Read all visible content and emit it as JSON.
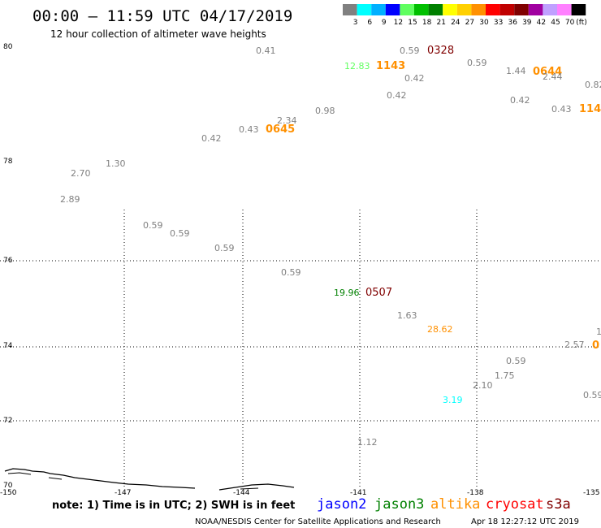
{
  "header": {
    "title": "00:00 – 11:59 UTC 04/17/2019",
    "subtitle": "12 hour collection of altimeter wave heights"
  },
  "legend": {
    "unit": "(ft)",
    "bins": [
      {
        "label": "3",
        "color": "#808080"
      },
      {
        "label": "6",
        "color": "#00ffff"
      },
      {
        "label": "9",
        "color": "#00b0ff"
      },
      {
        "label": "12",
        "color": "#0000ff"
      },
      {
        "label": "15",
        "color": "#60ff60"
      },
      {
        "label": "18",
        "color": "#00c000"
      },
      {
        "label": "21",
        "color": "#008000"
      },
      {
        "label": "24",
        "color": "#ffff00"
      },
      {
        "label": "27",
        "color": "#ffd000"
      },
      {
        "label": "30",
        "color": "#ff9000"
      },
      {
        "label": "33",
        "color": "#ff0000"
      },
      {
        "label": "36",
        "color": "#c00000"
      },
      {
        "label": "39",
        "color": "#800000"
      },
      {
        "label": "42",
        "color": "#a000a0"
      },
      {
        "label": "45",
        "color": "#c0a0ff"
      },
      {
        "label": "70",
        "color": "#ff80ff"
      },
      {
        "label": "",
        "color": "#000000"
      }
    ]
  },
  "axes": {
    "lat_labels": [
      "80",
      "78",
      "76",
      "74",
      "72",
      "70"
    ],
    "lon_labels": [
      "-150",
      "-147",
      "-144",
      "-141",
      "-138",
      "-135"
    ]
  },
  "observations": [
    {
      "text": "0.41",
      "color": "#808080"
    },
    {
      "text": "0.59",
      "color": "#808080"
    },
    {
      "text": "0328",
      "color": "#800000"
    },
    {
      "text": "12.83",
      "color": "#60ff60"
    },
    {
      "text": "1143",
      "color": "#ff9000"
    },
    {
      "text": "0.59",
      "color": "#808080"
    },
    {
      "text": "1.44",
      "color": "#808080"
    },
    {
      "text": "0644",
      "color": "#ff9000"
    },
    {
      "text": "0.42",
      "color": "#808080"
    },
    {
      "text": "2.44",
      "color": "#808080"
    },
    {
      "text": "0.82",
      "color": "#808080"
    },
    {
      "text": "0.42",
      "color": "#808080"
    },
    {
      "text": "0.42",
      "color": "#808080"
    },
    {
      "text": "0.43",
      "color": "#808080"
    },
    {
      "text": "114",
      "color": "#ff9000"
    },
    {
      "text": "0.98",
      "color": "#808080"
    },
    {
      "text": "2.34",
      "color": "#808080"
    },
    {
      "text": "0.43",
      "color": "#808080"
    },
    {
      "text": "0645",
      "color": "#ff9000"
    },
    {
      "text": "0.42",
      "color": "#808080"
    },
    {
      "text": "1.30",
      "color": "#808080"
    },
    {
      "text": "2.70",
      "color": "#808080"
    },
    {
      "text": "2.89",
      "color": "#808080"
    },
    {
      "text": "0.59",
      "color": "#808080"
    },
    {
      "text": "0.59",
      "color": "#808080"
    },
    {
      "text": "0.59",
      "color": "#808080"
    },
    {
      "text": "0.59",
      "color": "#808080"
    },
    {
      "text": "19.96",
      "color": "#008000"
    },
    {
      "text": "0507",
      "color": "#800000"
    },
    {
      "text": "1.63",
      "color": "#808080"
    },
    {
      "text": "28.62",
      "color": "#ff9000"
    },
    {
      "text": "2.57",
      "color": "#808080"
    },
    {
      "text": "0",
      "color": "#ff9000"
    },
    {
      "text": "1",
      "color": "#808080"
    },
    {
      "text": "0.59",
      "color": "#808080"
    },
    {
      "text": "1.75",
      "color": "#808080"
    },
    {
      "text": "2.10",
      "color": "#808080"
    },
    {
      "text": "3.19",
      "color": "#00ffff"
    },
    {
      "text": "0.59",
      "color": "#808080"
    },
    {
      "text": "1.12",
      "color": "#808080"
    }
  ],
  "footer": {
    "note": "note: 1) Time is in UTC; 2) SWH is in feet",
    "satellites": [
      {
        "name": "jason2",
        "color": "#0000ff"
      },
      {
        "name": "jason3",
        "color": "#008000"
      },
      {
        "name": "altika",
        "color": "#ff9000"
      },
      {
        "name": "cryosat",
        "color": "#ff0000"
      },
      {
        "name": "s3a",
        "color": "#800000"
      }
    ],
    "credit": "NOAA/NESDIS Center for Satellite Applications and Research",
    "timestamp": "Apr 18 12:27:12 UTC 2019"
  }
}
